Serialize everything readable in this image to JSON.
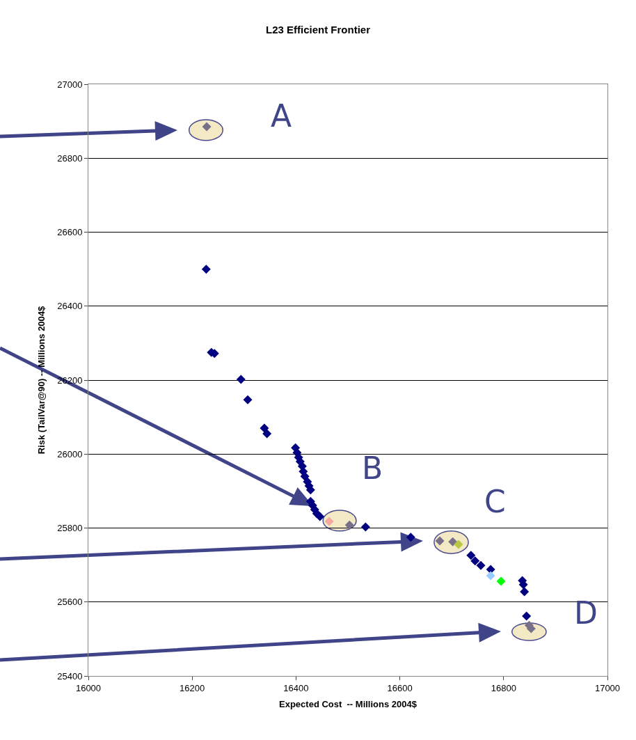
{
  "chart_data": {
    "type": "scatter",
    "title": "L23 Efficient Frontier",
    "xlabel": "Expected Cost  -- Millions 2004$",
    "ylabel": "Risk (TailVar@90) -- Millions 2004$",
    "x": [
      16228,
      16227,
      16237,
      16243,
      16294,
      16307,
      16339,
      16344,
      16399,
      16402,
      16405,
      16408,
      16412,
      16414,
      16417,
      16422,
      16425,
      16428,
      16428,
      16432,
      16436,
      16440,
      16446,
      16464,
      16503,
      16534,
      16621,
      16677,
      16702,
      16713,
      16737,
      16745,
      16756,
      16775,
      16775,
      16795,
      16836,
      16838,
      16840,
      16844,
      16849,
      16853
    ],
    "values": [
      26885,
      26500,
      26275,
      26272,
      26202,
      26147,
      26070,
      26055,
      26017,
      26004,
      25991,
      25980,
      25967,
      25953,
      25940,
      25925,
      25914,
      25903,
      25872,
      25861,
      25850,
      25839,
      25831,
      25818,
      25808,
      25803,
      25775,
      25765,
      25763,
      25756,
      25726,
      25711,
      25699,
      25688,
      25671,
      25656,
      25658,
      25647,
      25628,
      25562,
      25537,
      25528
    ],
    "colors": [
      "#777088",
      "#000080",
      "#000080",
      "#000080",
      "#000080",
      "#000080",
      "#000080",
      "#000080",
      "#000080",
      "#000080",
      "#000080",
      "#000080",
      "#000080",
      "#000080",
      "#000080",
      "#000080",
      "#000080",
      "#000080",
      "#000080",
      "#000080",
      "#000080",
      "#000080",
      "#000080",
      "#f4a8a0",
      "#777088",
      "#000080",
      "#000080",
      "#777088",
      "#777088",
      "#b8c840",
      "#000080",
      "#000080",
      "#000080",
      "#000080",
      "#99ccff",
      "#00ff00",
      "#000080",
      "#000080",
      "#000080",
      "#000080",
      "#777088",
      "#777088"
    ],
    "marker": "diamond",
    "xlim": [
      16000,
      17000
    ],
    "xticks": [
      16000,
      16200,
      16400,
      16600,
      16800,
      17000
    ],
    "ylim": [
      25400,
      27000
    ],
    "yticks": [
      25400,
      25600,
      25800,
      26000,
      26200,
      26400,
      26600,
      26800,
      27000
    ],
    "grid": "y",
    "annotations": [
      "A",
      "B",
      "C",
      "D"
    ]
  }
}
